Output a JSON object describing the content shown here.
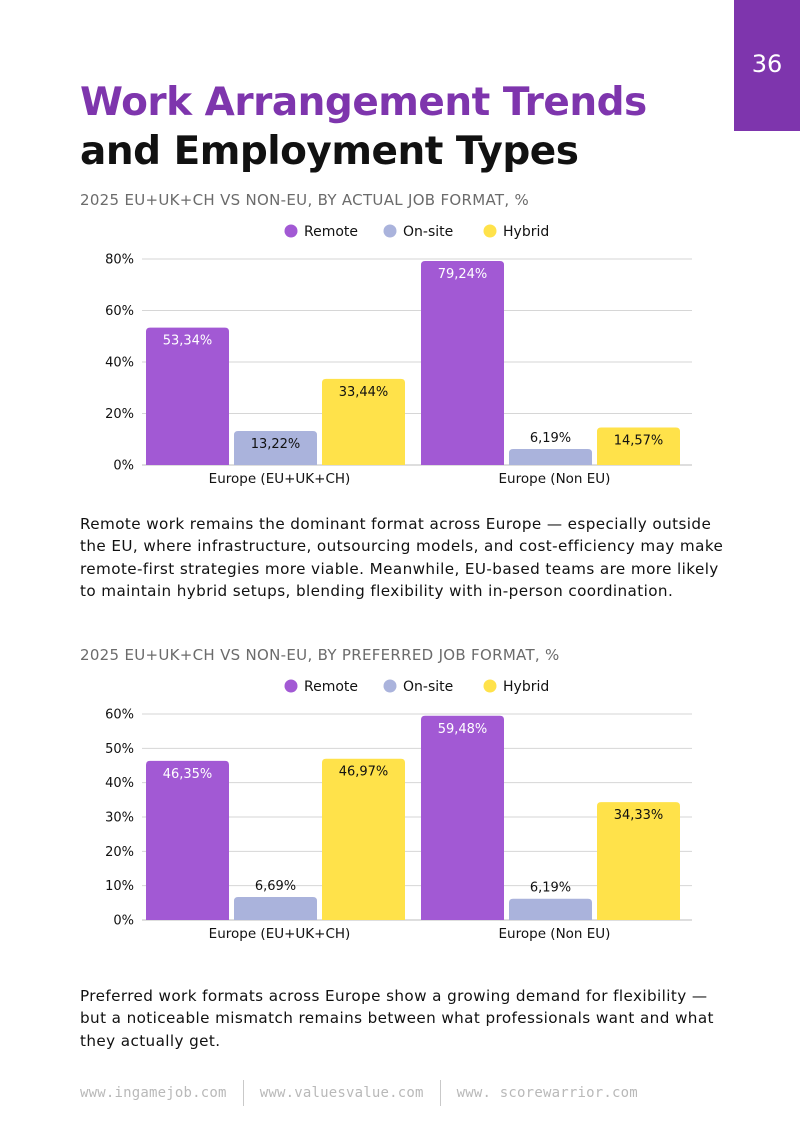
{
  "page": {
    "number": "36",
    "title_line1": "Work Arrangement Trends",
    "title_line2": "and Employment Types"
  },
  "colors": {
    "accent": "#7e35ad",
    "remote": "#a259d4",
    "onsite": "#aab3dc",
    "hybrid": "#ffe24a",
    "grid": "#d6d6d6"
  },
  "section1": {
    "subtitle": "2025 EU+UK+CH VS NON-EU, BY ACTUAL JOB FORMAT, %",
    "body": "Remote work remains the dominant format across Europe — especially outside the EU, where infrastructure, outsourcing models, and cost-efficiency may make remote-first strategies more viable. Meanwhile, EU-based teams are more likely to maintain hybrid setups, blending flexibility with in-person coordination."
  },
  "section2": {
    "subtitle": "2025 EU+UK+CH VS NON-EU, BY PREFERRED JOB FORMAT, %",
    "body": "Preferred work formats across Europe show a growing demand for flexibility — but a noticeable mismatch remains between what professionals want and what they actually get."
  },
  "footer": {
    "links": [
      "www.ingamejob.com",
      "www.valuesvalue.com",
      "www. scorewarrior.com"
    ]
  },
  "chart_data": [
    {
      "type": "bar",
      "title": "2025 EU+UK+CH VS NON-EU, BY ACTUAL JOB FORMAT, %",
      "categories": [
        "Europe (EU+UK+CH)",
        "Europe (Non EU)"
      ],
      "series": [
        {
          "name": "Remote",
          "values": [
            53.34,
            79.24
          ],
          "labels": [
            "53,34%",
            "79,24%"
          ]
        },
        {
          "name": "On-site",
          "values": [
            13.22,
            6.19
          ],
          "labels": [
            "13,22%",
            "6,19%"
          ]
        },
        {
          "name": "Hybrid",
          "values": [
            33.44,
            14.57
          ],
          "labels": [
            "33,44%",
            "14,57%"
          ]
        }
      ],
      "yticks": [
        0,
        20,
        40,
        60,
        80
      ],
      "ytick_labels": [
        "0%",
        "20%",
        "40%",
        "60%",
        "80%"
      ],
      "ylim": [
        0,
        80
      ],
      "legend": "top-center",
      "grid": true
    },
    {
      "type": "bar",
      "title": "2025 EU+UK+CH VS NON-EU, BY PREFERRED JOB FORMAT, %",
      "categories": [
        "Europe (EU+UK+CH)",
        "Europe (Non EU)"
      ],
      "series": [
        {
          "name": "Remote",
          "values": [
            46.35,
            59.48
          ],
          "labels": [
            "46,35%",
            "59,48%"
          ]
        },
        {
          "name": "On-site",
          "values": [
            6.69,
            6.19
          ],
          "labels": [
            "6,69%",
            "6,19%"
          ]
        },
        {
          "name": "Hybrid",
          "values": [
            46.97,
            34.33
          ],
          "labels": [
            "46,97%",
            "34,33%"
          ]
        }
      ],
      "yticks": [
        0,
        10,
        20,
        30,
        40,
        50,
        60
      ],
      "ytick_labels": [
        "0%",
        "10%",
        "20%",
        "30%",
        "40%",
        "50%",
        "60%"
      ],
      "ylim": [
        0,
        60
      ],
      "legend": "top-center",
      "grid": true
    }
  ]
}
